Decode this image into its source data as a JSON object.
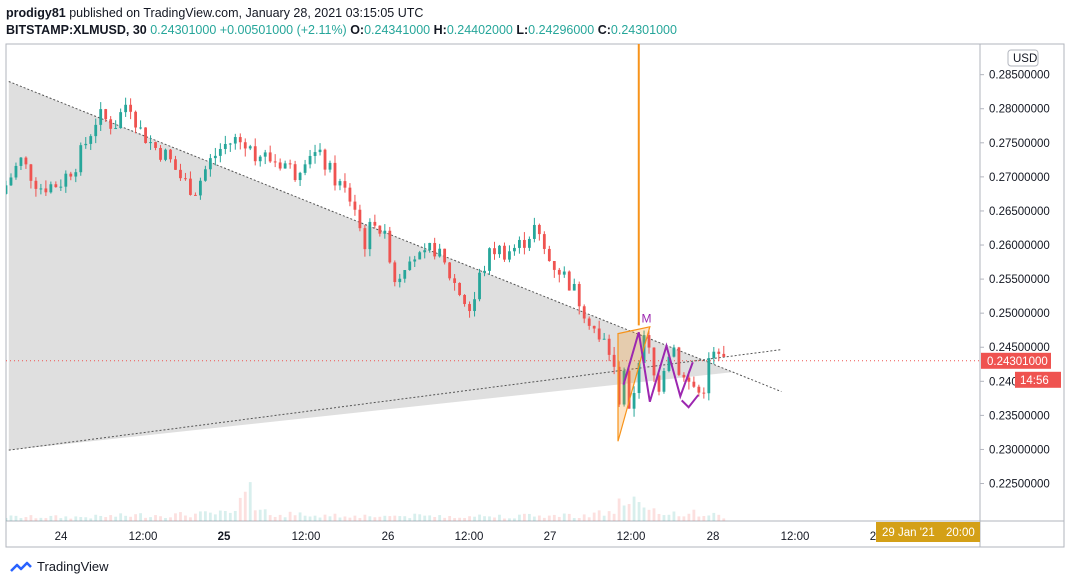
{
  "header": {
    "author": "prodigy81",
    "published": " published on TradingView.com, January 28, 2021 03:15:05 UTC"
  },
  "ticker": {
    "symbol": "BITSTAMP:XLMUSD, 30",
    "last": "0.24301000",
    "change": "+0.00501000 (+2.11%)",
    "o_label": "O:",
    "o": "0.24341000",
    "h_label": "H:",
    "h": "0.24402000",
    "l_label": "L:",
    "l": "0.24296000",
    "c_label": "C:",
    "c": "0.24301000"
  },
  "footer": {
    "brand": "TradingView",
    "icon": "tradingview-logo-icon"
  },
  "colors": {
    "up": "#26a69a",
    "down": "#ef5350",
    "triangle_fill": "#d9d9d9",
    "orange": "#f7931a",
    "pattern": "#9c27b0",
    "price_tag": "#ef5350",
    "date_tag": "#d4a017"
  },
  "chart_data": {
    "type": "candlestick",
    "currency_label": "USD",
    "y_ticks": [
      "0.28500000",
      "0.28000000",
      "0.27500000",
      "0.27000000",
      "0.26500000",
      "0.26000000",
      "0.25500000",
      "0.25000000",
      "0.24500000",
      "0.24000000",
      "0.23500000",
      "0.23000000",
      "0.22500000"
    ],
    "y_tick_values": [
      0.285,
      0.28,
      0.275,
      0.27,
      0.265,
      0.26,
      0.255,
      0.25,
      0.245,
      0.24,
      0.235,
      0.23,
      0.225
    ],
    "x_ticks": [
      "24",
      "12:00",
      "25",
      "12:00",
      "26",
      "12:00",
      "27",
      "12:00",
      "28",
      "12:00",
      "2"
    ],
    "x_tick_bold": [
      false,
      false,
      true,
      false,
      false,
      false,
      false,
      false,
      false,
      false,
      false
    ],
    "ylim": [
      0.2195,
      0.2895
    ],
    "last_price": "0.24301000",
    "countdown": "14:56",
    "crosshair_date_label": "29 Jan '21",
    "crosshair_time_label": "20:00",
    "pattern_label": "M",
    "path": [
      [
        0,
        0.2675
      ],
      [
        14,
        0.2725
      ],
      [
        28,
        0.2685
      ],
      [
        42,
        0.269
      ],
      [
        55,
        0.2722
      ],
      [
        70,
        0.279
      ],
      [
        82,
        0.2775
      ],
      [
        92,
        0.2815
      ],
      [
        100,
        0.277
      ],
      [
        110,
        0.2745
      ],
      [
        120,
        0.273
      ],
      [
        131,
        0.2695
      ],
      [
        140,
        0.268
      ],
      [
        150,
        0.272
      ],
      [
        160,
        0.2745
      ],
      [
        170,
        0.2755
      ],
      [
        180,
        0.274
      ],
      [
        195,
        0.2725
      ],
      [
        205,
        0.272
      ],
      [
        212,
        0.2705
      ],
      [
        222,
        0.274
      ],
      [
        232,
        0.2725
      ],
      [
        240,
        0.27
      ],
      [
        246,
        0.2685
      ],
      [
        255,
        0.266
      ],
      [
        262,
        0.26
      ],
      [
        270,
        0.264
      ],
      [
        280,
        0.2595
      ],
      [
        285,
        0.2545
      ],
      [
        295,
        0.259
      ],
      [
        305,
        0.2575
      ],
      [
        312,
        0.26
      ],
      [
        320,
        0.257
      ],
      [
        330,
        0.2535
      ],
      [
        340,
        0.25
      ],
      [
        345,
        0.255
      ],
      [
        355,
        0.2595
      ],
      [
        365,
        0.259
      ],
      [
        375,
        0.26
      ],
      [
        385,
        0.2625
      ],
      [
        395,
        0.258
      ],
      [
        405,
        0.256
      ],
      [
        412,
        0.254
      ],
      [
        420,
        0.251
      ],
      [
        428,
        0.248
      ],
      [
        433,
        0.245
      ],
      [
        437,
        0.2462
      ],
      [
        443,
        0.2412
      ],
      [
        446,
        0.237
      ],
      [
        450,
        0.242
      ],
      [
        454,
        0.234
      ],
      [
        458,
        0.24
      ],
      [
        462,
        0.245
      ],
      [
        466,
        0.2465
      ],
      [
        470,
        0.242
      ],
      [
        474,
        0.2385
      ],
      [
        478,
        0.242
      ],
      [
        482,
        0.2445
      ],
      [
        486,
        0.245
      ],
      [
        490,
        0.2415
      ],
      [
        494,
        0.24
      ],
      [
        498,
        0.2395
      ],
      [
        502,
        0.239
      ],
      [
        506,
        0.2375
      ],
      [
        510,
        0.242
      ],
      [
        514,
        0.244
      ],
      [
        518,
        0.2435
      ],
      [
        520,
        0.243
      ]
    ],
    "volume_shape": [
      [
        0,
        4
      ],
      [
        60,
        4
      ],
      [
        100,
        6
      ],
      [
        120,
        6
      ],
      [
        170,
        8
      ],
      [
        180,
        20
      ],
      [
        190,
        7
      ],
      [
        260,
        5
      ],
      [
        330,
        5
      ],
      [
        380,
        5
      ],
      [
        420,
        6
      ],
      [
        440,
        10
      ],
      [
        450,
        13
      ],
      [
        470,
        8
      ],
      [
        500,
        8
      ],
      [
        520,
        4
      ]
    ],
    "volume_spikes": [
      [
        168,
        3
      ],
      [
        170,
        4
      ],
      [
        175,
        2
      ]
    ],
    "triangle": {
      "upper_line": [
        [
          2,
          0.284
        ],
        [
          490,
          0.2442
        ]
      ],
      "lower_line": [
        [
          2,
          0.2299
        ],
        [
          490,
          0.2428
        ]
      ]
    },
    "orange_triangle": [
      [
        442,
        0.247
      ],
      [
        465,
        0.248
      ],
      [
        442,
        0.2312
      ],
      [
        442,
        0.247
      ]
    ],
    "orange_line": [
      [
        442,
        0.2312
      ],
      [
        465,
        0.248
      ]
    ],
    "orange_vertical": {
      "x": 457,
      "y_top": 0.2895,
      "y_bottom": 0.2482
    },
    "m_pattern": [
      [
        446,
        0.2395
      ],
      [
        457,
        0.2472
      ],
      [
        465,
        0.237
      ],
      [
        477,
        0.2452
      ],
      [
        487,
        0.2378
      ],
      [
        496,
        0.2428
      ]
    ],
    "m_pattern_check": [
      [
        488,
        0.2372
      ],
      [
        493,
        0.2362
      ],
      [
        500,
        0.238
      ]
    ],
    "x_range": [
      0,
      520
    ]
  }
}
